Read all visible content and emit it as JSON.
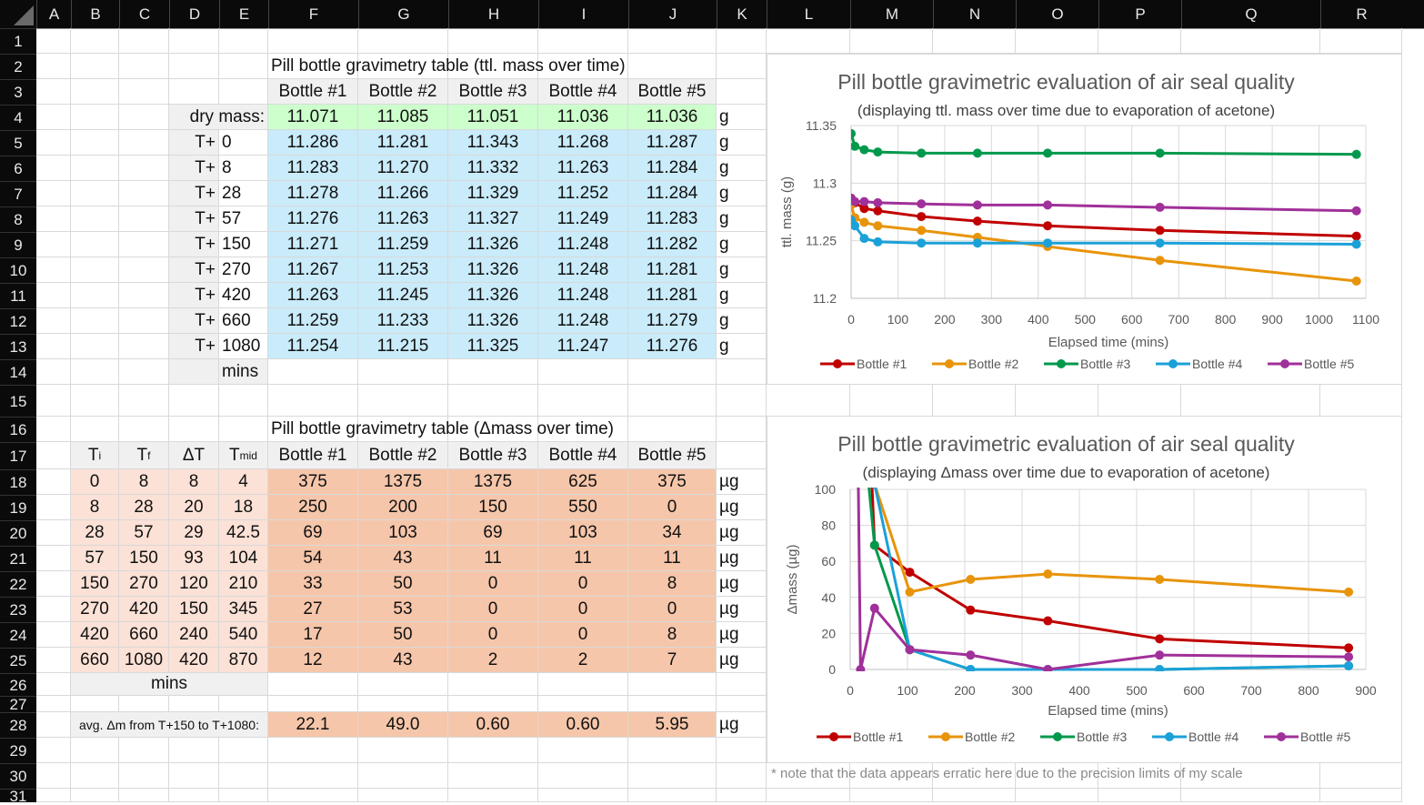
{
  "columns": [
    "A",
    "B",
    "C",
    "D",
    "E",
    "F",
    "G",
    "H",
    "I",
    "J",
    "K",
    "L",
    "M",
    "N",
    "O",
    "P",
    "Q",
    "R"
  ],
  "rows": [
    "1",
    "2",
    "3",
    "4",
    "5",
    "6",
    "7",
    "8",
    "9",
    "10",
    "11",
    "12",
    "13",
    "14",
    "15",
    "16",
    "17",
    "18",
    "19",
    "20",
    "21",
    "22",
    "23",
    "24",
    "25",
    "26",
    "27",
    "28",
    "29",
    "30",
    "31"
  ],
  "table1": {
    "title": "Pill bottle gravimetry table (ttl. mass over time)",
    "headers": [
      "Bottle #1",
      "Bottle #2",
      "Bottle #3",
      "Bottle #4",
      "Bottle #5"
    ],
    "dry_label": "dry mass:",
    "dry": [
      "11.071",
      "11.085",
      "11.051",
      "11.036",
      "11.036"
    ],
    "t_prefix": "T+",
    "times": [
      "0",
      "8",
      "28",
      "57",
      "150",
      "270",
      "420",
      "660",
      "1080"
    ],
    "values": [
      [
        "11.286",
        "11.281",
        "11.343",
        "11.268",
        "11.287"
      ],
      [
        "11.283",
        "11.270",
        "11.332",
        "11.263",
        "11.284"
      ],
      [
        "11.278",
        "11.266",
        "11.329",
        "11.252",
        "11.284"
      ],
      [
        "11.276",
        "11.263",
        "11.327",
        "11.249",
        "11.283"
      ],
      [
        "11.271",
        "11.259",
        "11.326",
        "11.248",
        "11.282"
      ],
      [
        "11.267",
        "11.253",
        "11.326",
        "11.248",
        "11.281"
      ],
      [
        "11.263",
        "11.245",
        "11.326",
        "11.248",
        "11.281"
      ],
      [
        "11.259",
        "11.233",
        "11.326",
        "11.248",
        "11.279"
      ],
      [
        "11.254",
        "11.215",
        "11.325",
        "11.247",
        "11.276"
      ]
    ],
    "unit": "g",
    "time_unit": "mins"
  },
  "table2": {
    "title": "Pill bottle gravimetry table (Δmass over time)",
    "t_headers": [
      {
        "main": "T",
        "sub": "i"
      },
      {
        "main": "T",
        "sub": "f"
      },
      {
        "main": "ΔT",
        "sub": ""
      },
      {
        "main": "T",
        "sub": "mid"
      }
    ],
    "headers": [
      "Bottle #1",
      "Bottle #2",
      "Bottle #3",
      "Bottle #4",
      "Bottle #5"
    ],
    "times": [
      [
        "0",
        "8",
        "8",
        "4"
      ],
      [
        "8",
        "28",
        "20",
        "18"
      ],
      [
        "28",
        "57",
        "29",
        "42.5"
      ],
      [
        "57",
        "150",
        "93",
        "104"
      ],
      [
        "150",
        "270",
        "120",
        "210"
      ],
      [
        "270",
        "420",
        "150",
        "345"
      ],
      [
        "420",
        "660",
        "240",
        "540"
      ],
      [
        "660",
        "1080",
        "420",
        "870"
      ]
    ],
    "values": [
      [
        "375",
        "1375",
        "1375",
        "625",
        "375"
      ],
      [
        "250",
        "200",
        "150",
        "550",
        "0"
      ],
      [
        "69",
        "103",
        "69",
        "103",
        "34"
      ],
      [
        "54",
        "43",
        "11",
        "11",
        "11"
      ],
      [
        "33",
        "50",
        "0",
        "0",
        "8"
      ],
      [
        "27",
        "53",
        "0",
        "0",
        "0"
      ],
      [
        "17",
        "50",
        "0",
        "0",
        "8"
      ],
      [
        "12",
        "43",
        "2",
        "2",
        "7"
      ]
    ],
    "unit": "µg",
    "time_unit": "mins",
    "avg_label": "avg. Δm from T+150 to T+1080:",
    "avg": [
      "22.1",
      "49.0",
      "0.60",
      "0.60",
      "5.95"
    ]
  },
  "note": "* note that the data appears erratic here due to the precision limits of my scale",
  "chart_data": [
    {
      "type": "line",
      "title": "Pill bottle gravimetric evaluation of air seal quality",
      "subtitle": "(displaying ttl. mass over time due to evaporation of acetone)",
      "xlabel": "Elapsed time (mins)",
      "ylabel": "ttl. mass (g)",
      "xlim": [
        0,
        1100
      ],
      "ylim": [
        11.2,
        11.35
      ],
      "xticks": [
        0,
        100,
        200,
        300,
        400,
        500,
        600,
        700,
        800,
        900,
        1000,
        1100
      ],
      "yticks": [
        11.2,
        11.25,
        11.3,
        11.35
      ],
      "ytick_labels": [
        "11.2",
        "11.25",
        "11.3",
        "11.35"
      ],
      "grid": true,
      "legend": "bottom",
      "x": [
        0,
        8,
        28,
        57,
        150,
        270,
        420,
        660,
        1080
      ],
      "series": [
        {
          "name": "Bottle #1",
          "color": "#c00000",
          "values": [
            11.286,
            11.283,
            11.278,
            11.276,
            11.271,
            11.267,
            11.263,
            11.259,
            11.254
          ]
        },
        {
          "name": "Bottle #2",
          "color": "#e8940a",
          "values": [
            11.281,
            11.27,
            11.266,
            11.263,
            11.259,
            11.253,
            11.245,
            11.233,
            11.215
          ]
        },
        {
          "name": "Bottle #3",
          "color": "#00994c",
          "values": [
            11.343,
            11.332,
            11.329,
            11.327,
            11.326,
            11.326,
            11.326,
            11.326,
            11.325
          ]
        },
        {
          "name": "Bottle #4",
          "color": "#1ba1d8",
          "values": [
            11.268,
            11.263,
            11.252,
            11.249,
            11.248,
            11.248,
            11.248,
            11.248,
            11.247
          ]
        },
        {
          "name": "Bottle #5",
          "color": "#a0309a",
          "values": [
            11.287,
            11.284,
            11.284,
            11.283,
            11.282,
            11.281,
            11.281,
            11.279,
            11.276
          ]
        }
      ]
    },
    {
      "type": "line",
      "title": "Pill bottle gravimetric evaluation of air seal quality",
      "subtitle": "(displaying Δmass over time due to evaporation of acetone)",
      "xlabel": "Elapsed time (mins)",
      "ylabel": "Δmass (µg)",
      "xlim": [
        0,
        900
      ],
      "ylim": [
        0,
        100
      ],
      "xticks": [
        0,
        100,
        200,
        300,
        400,
        500,
        600,
        700,
        800,
        900
      ],
      "yticks": [
        0,
        20,
        40,
        60,
        80,
        100
      ],
      "ytick_labels": [
        "0",
        "20",
        "40",
        "60",
        "80",
        "100"
      ],
      "grid": true,
      "legend": "bottom",
      "x": [
        4,
        18,
        42.5,
        104,
        210,
        345,
        540,
        870
      ],
      "series": [
        {
          "name": "Bottle #1",
          "color": "#c00000",
          "values": [
            375,
            250,
            69,
            54,
            33,
            27,
            17,
            12
          ]
        },
        {
          "name": "Bottle #2",
          "color": "#e8940a",
          "values": [
            1375,
            200,
            103,
            43,
            50,
            53,
            50,
            43
          ]
        },
        {
          "name": "Bottle #3",
          "color": "#00994c",
          "values": [
            1375,
            150,
            69,
            11,
            0,
            0,
            0,
            2
          ]
        },
        {
          "name": "Bottle #4",
          "color": "#1ba1d8",
          "values": [
            625,
            550,
            103,
            11,
            0,
            0,
            0,
            2
          ]
        },
        {
          "name": "Bottle #5",
          "color": "#a0309a",
          "values": [
            375,
            0,
            34,
            11,
            8,
            0,
            8,
            7
          ]
        }
      ]
    }
  ]
}
